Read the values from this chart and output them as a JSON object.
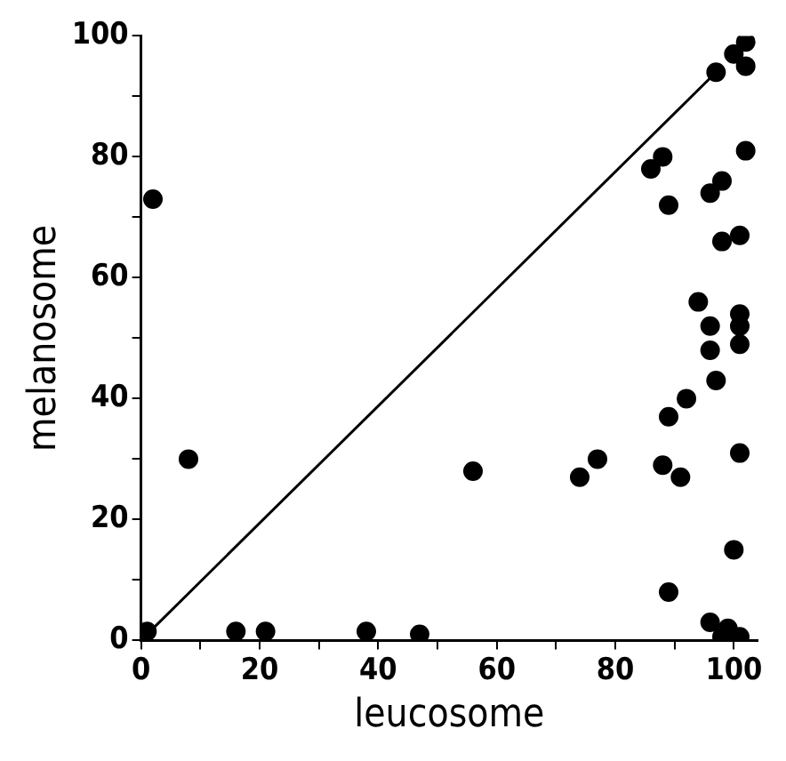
{
  "chart_data": {
    "type": "scatter",
    "xlabel": "leucosome",
    "ylabel": "melanosome",
    "xlim": [
      0,
      104
    ],
    "ylim": [
      0,
      100
    ],
    "xticks": [
      0,
      {
        "value": 10,
        "label": null
      },
      20,
      {
        "value": 30,
        "label": null
      },
      40,
      {
        "value": 50,
        "label": null
      },
      60,
      {
        "value": 70,
        "label": null
      },
      80,
      {
        "value": 90,
        "label": null
      },
      100
    ],
    "yticks": [
      0,
      {
        "value": 10,
        "label": null
      },
      20,
      {
        "value": 30,
        "label": null
      },
      40,
      {
        "value": 50,
        "label": null
      },
      60,
      {
        "value": 70,
        "label": null
      },
      80,
      {
        "value": 90,
        "label": null
      },
      100
    ],
    "grid": false,
    "legend": false,
    "marker": "circle",
    "series": [
      {
        "color": "#000000",
        "x": [
          2,
          8,
          1,
          16,
          21,
          38,
          47,
          56,
          74,
          77,
          88,
          91,
          89,
          92,
          97,
          101,
          100,
          89,
          96,
          99,
          98,
          101,
          102,
          100,
          102,
          97,
          102,
          86,
          88,
          89,
          96,
          98,
          98,
          101,
          94,
          101,
          101,
          101,
          96,
          96
        ],
        "values": [
          73,
          30,
          1.5,
          1.5,
          1.5,
          1.5,
          1,
          28,
          27,
          30,
          29,
          27,
          37,
          40,
          43,
          31,
          15,
          8,
          3,
          2,
          0.6,
          0.6,
          99,
          97,
          95,
          94,
          81,
          78,
          80,
          72,
          74,
          76,
          66,
          67,
          56,
          54,
          52,
          49,
          52,
          48
        ]
      },
      {
        "type": "line",
        "color": "#000000",
        "marker": "none",
        "line_style": "solid",
        "x": [
          1,
          97
        ],
        "values": [
          1,
          94
        ]
      }
    ]
  }
}
